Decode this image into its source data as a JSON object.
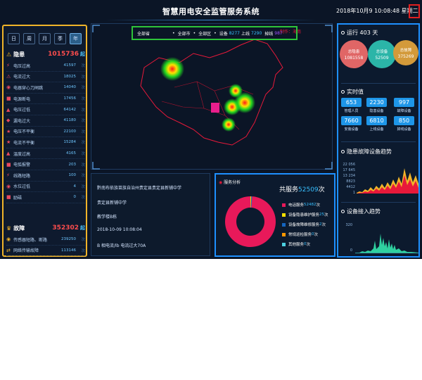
{
  "header": {
    "title": "智慧用电安全监管服务系统",
    "datetime": "2018年10月9 10:08:48 星期二"
  },
  "left_panel": {
    "periods": [
      {
        "label": "日",
        "active": false
      },
      {
        "label": "周",
        "active": false
      },
      {
        "label": "月",
        "active": false
      },
      {
        "label": "季",
        "active": false
      },
      {
        "label": "年",
        "active": true
      }
    ],
    "hazard": {
      "label": "隐患",
      "value": "1015736",
      "unit": "起",
      "icon": "warning-icon"
    },
    "hazard_items": [
      {
        "name": "电压过高",
        "value": "41597",
        "unit": "次"
      },
      {
        "name": "电流过大",
        "value": "18025",
        "unit": "次"
      },
      {
        "name": "电器穿心刀闸跳",
        "value": "14040",
        "unit": "次"
      },
      {
        "name": "电源断电",
        "value": "17456",
        "unit": "次"
      },
      {
        "name": "电压过低",
        "value": "64142",
        "unit": "次"
      },
      {
        "name": "漏电过大",
        "value": "41180",
        "unit": "次"
      },
      {
        "name": "电压不平衡",
        "value": "22100",
        "unit": "次"
      },
      {
        "name": "电流不平衡",
        "value": "15284",
        "unit": "次"
      },
      {
        "name": "温度过高",
        "value": "4165",
        "unit": "次"
      },
      {
        "name": "电弧报警",
        "value": "203",
        "unit": "次"
      },
      {
        "name": "线路短路",
        "value": "100",
        "unit": "次"
      },
      {
        "name": "水位过低",
        "value": "4",
        "unit": "次"
      },
      {
        "name": "励磁",
        "value": "0",
        "unit": "次"
      }
    ],
    "fault": {
      "label": "故障",
      "value": "352302",
      "unit": "起",
      "icon": "crown-icon"
    },
    "fault_items": [
      {
        "name": "传感器短路、断路",
        "value": "239250",
        "unit": "次"
      },
      {
        "name": "网络传输故障",
        "value": "113146",
        "unit": "次"
      }
    ]
  },
  "filter": {
    "province": "全部省",
    "city": "全部市",
    "district": "全部区",
    "device_label": "设备",
    "device_count": "8277",
    "online_label": "上线",
    "online_count": "7290",
    "offline_label": "掉线",
    "offline_count": "987"
  },
  "map": {
    "watermark": "制作：海南"
  },
  "event": {
    "lines": [
      "黔南布依族苗族自治州贵定县贵定县新铺中学",
      "贵定县新铺中学",
      "教学楼B栋",
      "2018-10-09 10:08:04",
      "B 相电流/lb 电流过大70A"
    ]
  },
  "service": {
    "header": "服务分析",
    "total_label": "共服务",
    "total_value": "52509",
    "total_unit": "次",
    "items": [
      {
        "name": "电话服务",
        "value": "52482",
        "unit": "次",
        "color": "#e8195a"
      },
      {
        "name": "设备隐患维护服务",
        "value": "25",
        "unit": "次",
        "color": "#f5e000"
      },
      {
        "name": "设备故障维修服务",
        "value": "2",
        "unit": "次",
        "color": "#1565c0"
      },
      {
        "name": "常规巡检服务",
        "value": "0",
        "unit": "次",
        "color": "#ff9800"
      },
      {
        "name": "其他服务",
        "value": "0",
        "unit": "次",
        "color": "#4dd0e1"
      }
    ]
  },
  "right": {
    "running": "运行 403 天",
    "circles": [
      {
        "label": "总隐患",
        "value": "1081558",
        "color": "#e06666"
      },
      {
        "label": "总设备",
        "value": "52509",
        "color": "#2bb5a8"
      },
      {
        "label": "总故障",
        "value": "375269",
        "color": "#d39a3a"
      }
    ],
    "realtime_header": "实时值",
    "stats": [
      {
        "value": "653",
        "label": "管理人员"
      },
      {
        "value": "2230",
        "label": "隐患设备"
      },
      {
        "value": "997",
        "label": "故障设备"
      },
      {
        "value": "7660",
        "label": "安装设备"
      },
      {
        "value": "6810",
        "label": "上线设备"
      },
      {
        "value": "850",
        "label": "掉线设备"
      }
    ],
    "trend_header": "隐患故障设备趋势",
    "trend_axis": [
      "22 056",
      "17 645",
      "13 234",
      "8823",
      "4412",
      "1"
    ],
    "access_header": "设备接入趋势",
    "access_axis": [
      "320",
      "0"
    ]
  },
  "chart_data": [
    {
      "type": "pie",
      "title": "服务分析",
      "labels": [
        "电话服务",
        "设备隐患维护服务",
        "设备故障维修服务",
        "常规巡检服务",
        "其他服务"
      ],
      "values": [
        52482,
        25,
        2,
        0,
        0
      ]
    }
  ],
  "colors": {
    "background": "#0b1526",
    "left_border": "#f0b429",
    "right_border": "#1e90ff",
    "filter_border": "#2ec43a",
    "accent": "#39c0ff",
    "alert": "#ff4d4d"
  }
}
